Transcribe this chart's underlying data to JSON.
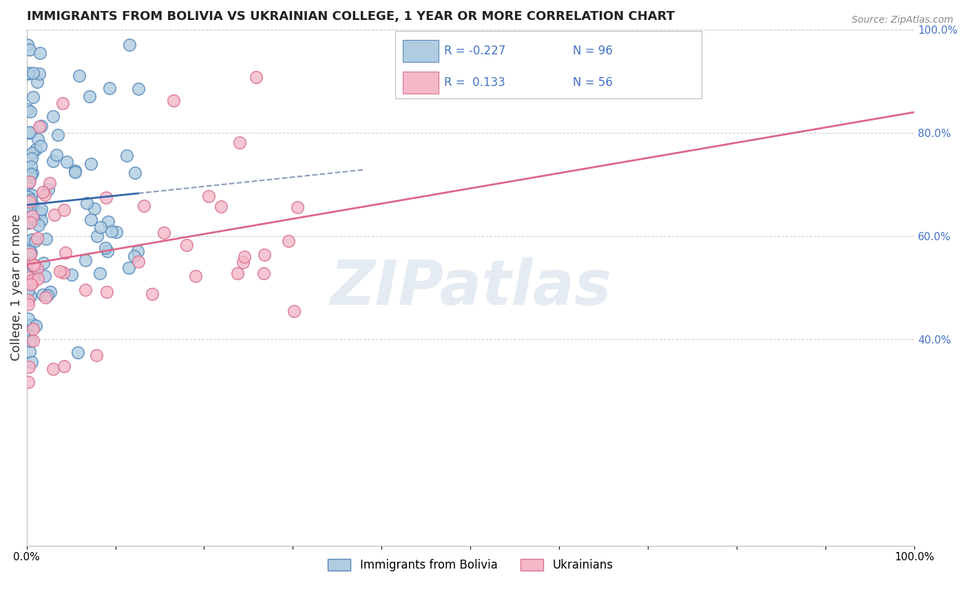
{
  "title": "IMMIGRANTS FROM BOLIVIA VS UKRAINIAN COLLEGE, 1 YEAR OR MORE CORRELATION CHART",
  "source_text": "Source: ZipAtlas.com",
  "ylabel": "College, 1 year or more",
  "xlim": [
    0.0,
    1.0
  ],
  "ylim": [
    0.0,
    1.0
  ],
  "xticklabels": [
    "0.0%",
    "",
    "",
    "",
    "",
    "",
    "",
    "",
    "",
    "",
    "100.0%"
  ],
  "xtick_vals": [
    0.0,
    0.1,
    0.2,
    0.3,
    0.4,
    0.5,
    0.6,
    0.7,
    0.8,
    0.9,
    1.0
  ],
  "ytick_right_vals": [
    0.4,
    0.6,
    0.8,
    1.0
  ],
  "yticklabels_right": [
    "40.0%",
    "60.0%",
    "80.0%",
    "100.0%"
  ],
  "blue_R": -0.227,
  "blue_N": 96,
  "pink_R": 0.133,
  "pink_N": 56,
  "blue_fill": "#b0cce0",
  "blue_edge": "#5588bb",
  "pink_fill": "#f4b8c8",
  "pink_edge": "#d87090",
  "blue_line_color": "#3366aa",
  "blue_dash_color": "#8899bb",
  "pink_line_color": "#dd6688",
  "watermark": "ZIPatlas",
  "watermark_color": "#d0dce8",
  "grid_color": "#cccccc",
  "right_tick_color": "#4472c4",
  "source_color": "#888888",
  "bottom_legend_label1": "Immigrants from Bolivia",
  "bottom_legend_label2": "Ukrainians",
  "legend_blue_fill": "#b0cce0",
  "legend_blue_edge": "#5588bb",
  "legend_pink_fill": "#f4b8c8",
  "legend_pink_edge": "#d87090"
}
